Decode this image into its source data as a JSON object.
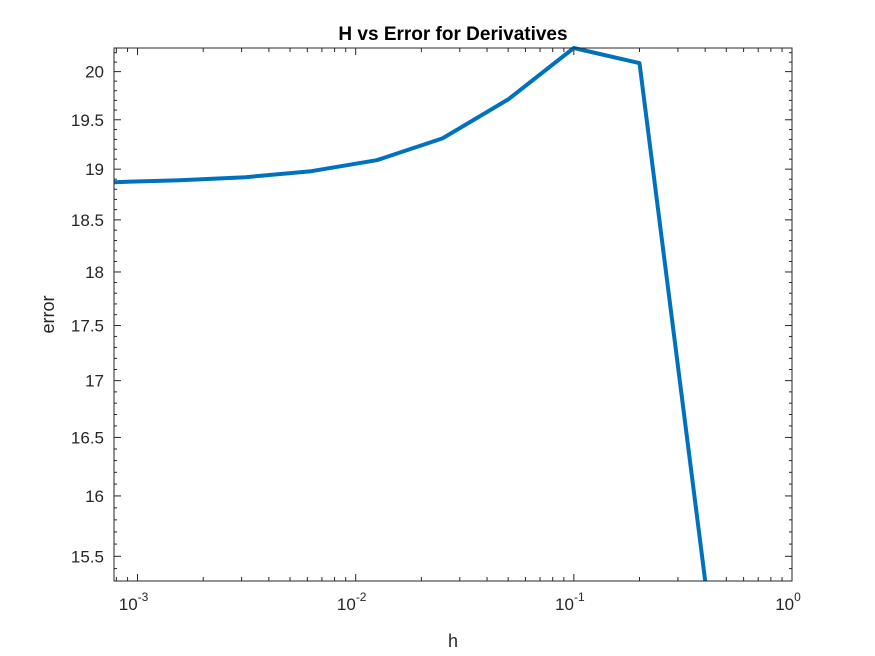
{
  "chart_data": {
    "type": "line",
    "title": "H vs Error for Derivatives",
    "xlabel": "h",
    "ylabel": "error",
    "xscale": "log",
    "yscale": "log",
    "xlim": [
      0.00078,
      1
    ],
    "ylim": [
      15.3,
      20.25
    ],
    "grid": false,
    "legend": "none",
    "x_tick_labels": [
      {
        "value": 0.001,
        "base": "10",
        "exp": "-3"
      },
      {
        "value": 0.01,
        "base": "10",
        "exp": "-2"
      },
      {
        "value": 0.1,
        "base": "10",
        "exp": "-1"
      },
      {
        "value": 1,
        "base": "10",
        "exp": "0"
      }
    ],
    "y_tick_labels": [
      "15.5",
      "16",
      "16.5",
      "17",
      "17.5",
      "18",
      "18.5",
      "19",
      "19.5",
      "20"
    ],
    "series": [
      {
        "color": "#0072bd",
        "x": [
          0.00078125,
          0.0015625,
          0.003125,
          0.00625,
          0.0125,
          0.025,
          0.05,
          0.1,
          0.2,
          0.4
        ],
        "y": [
          18.87,
          18.89,
          18.92,
          18.98,
          19.09,
          19.31,
          19.71,
          20.25,
          20.09,
          15.3
        ]
      }
    ]
  }
}
